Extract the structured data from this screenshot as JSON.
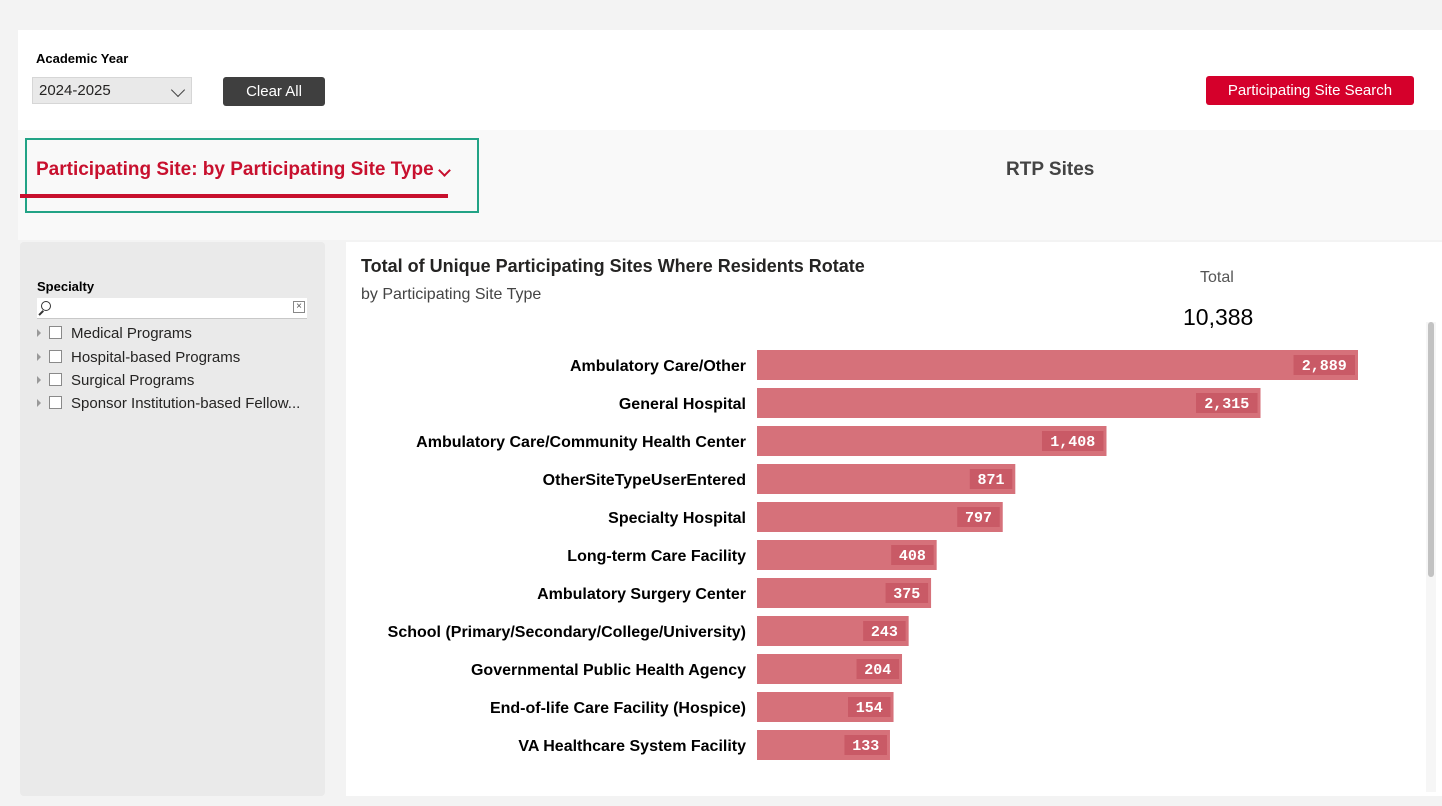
{
  "filters": {
    "academic_year_label": "Academic Year",
    "academic_year_value": "2024-2025",
    "clear_all_label": "Clear All",
    "site_search_label": "Participating Site Search"
  },
  "tabs": {
    "active_label": "Participating Site: by Participating Site Type",
    "other_label": "RTP Sites"
  },
  "slicer": {
    "title": "Specialty",
    "search_placeholder": "",
    "items": [
      "Medical Programs",
      "Hospital-based Programs",
      "Surgical Programs",
      "Sponsor Institution-based Fellow..."
    ]
  },
  "colors": {
    "brand_red": "#d5002b",
    "bar_fill": "#d6717a",
    "label_box": "#c95a66",
    "highlight_frame": "#22a386"
  },
  "chart": {
    "title": "Total of Unique Participating Sites Where Residents Rotate",
    "subtitle": "by Participating Site Type",
    "total_label": "Total",
    "total_value": "10,388"
  },
  "chart_data": {
    "type": "bar",
    "orientation": "horizontal",
    "categories": [
      "Ambulatory Care/Other",
      "General Hospital",
      "Ambulatory Care/Community Health Center",
      "OtherSiteTypeUserEntered",
      "Specialty Hospital",
      "Long-term Care Facility",
      "Ambulatory Surgery Center",
      "School (Primary/Secondary/College/University)",
      "Governmental Public Health Agency",
      "End-of-life Care Facility (Hospice)",
      "VA Healthcare System Facility"
    ],
    "values": [
      2889,
      2315,
      1408,
      871,
      797,
      408,
      375,
      243,
      204,
      154,
      133
    ],
    "value_labels": [
      "2,889",
      "2,315",
      "1,408",
      "871",
      "797",
      "408",
      "375",
      "243",
      "204",
      "154",
      "133"
    ],
    "xmin": -650,
    "xmax": 2889,
    "grid": false
  }
}
